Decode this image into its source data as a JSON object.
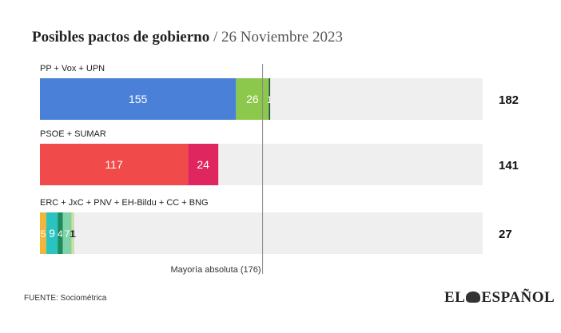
{
  "title_main": "Posibles pactos de gobierno",
  "title_sep": " / ",
  "title_date": "26 Noviembre 2023",
  "source": "FUENTE: Sociométrica",
  "logo": {
    "left": "EL",
    "right": "ESPAÑOL",
    "icon": "eagle-icon"
  },
  "chart_data": {
    "type": "bar",
    "orientation": "horizontal",
    "stacked": true,
    "xlim": [
      0,
      350
    ],
    "reference_line": {
      "value": 176,
      "label": "Mayoría absoluta (176)"
    },
    "groups": [
      {
        "label": "PP + Vox + UPN",
        "total": "182",
        "segments": [
          {
            "value": 155,
            "label": "155",
            "color": "#4a80d8"
          },
          {
            "value": 26,
            "label": "26",
            "color": "#8cc84b"
          },
          {
            "value": 1,
            "label": "1",
            "color": "#1f4b45"
          }
        ]
      },
      {
        "label": "PSOE + SUMAR",
        "total": "141",
        "segments": [
          {
            "value": 117,
            "label": "117",
            "color": "#f04a4a"
          },
          {
            "value": 24,
            "label": "24",
            "color": "#e0265f"
          }
        ]
      },
      {
        "label": "ERC + JxC + PNV + EH-Bildu + CC + BNG",
        "total": "27",
        "segments": [
          {
            "value": 5,
            "label": "5",
            "color": "#f2b53a"
          },
          {
            "value": 9,
            "label": "9",
            "color": "#29c4c0"
          },
          {
            "value": 4,
            "label": "4",
            "color": "#1f8a5c"
          },
          {
            "value": 7,
            "label": "7",
            "color": "#7fd3a8"
          },
          {
            "value": 1,
            "label": "1",
            "color": "#f5e04a"
          },
          {
            "value": 1,
            "label": "1",
            "color": "#a8d8ea"
          }
        ]
      }
    ],
    "colors": {
      "track": "#efefef",
      "reference": "#888888",
      "label": "#ffffff",
      "total": "#111111"
    }
  }
}
